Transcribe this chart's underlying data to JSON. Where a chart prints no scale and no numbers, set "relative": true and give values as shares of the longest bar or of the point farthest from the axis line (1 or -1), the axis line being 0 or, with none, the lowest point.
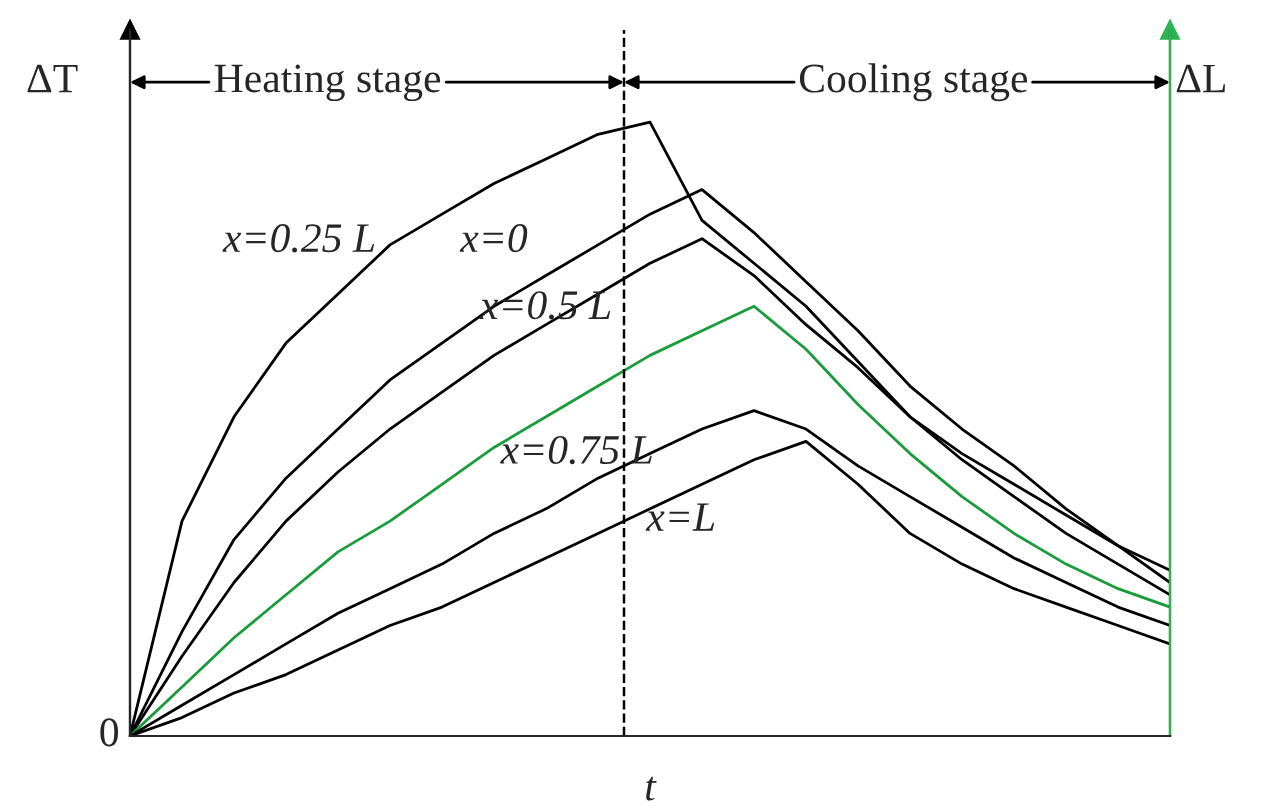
{
  "chart_data": {
    "type": "line",
    "relative": true,
    "xlabel": "t",
    "ylabel": "ΔT",
    "y2label": "ΔL",
    "tick_labels": false,
    "marker": "none",
    "line_style": "solid",
    "categories": [
      null,
      null,
      null,
      null,
      null,
      null,
      null,
      null,
      null,
      null,
      null,
      null,
      null,
      null,
      null,
      null,
      null,
      null,
      null,
      null,
      null
    ],
    "series": [
      {
        "color": "#000000",
        "values": [
          0,
          0.35,
          0.52,
          0.64,
          0.72,
          0.8,
          0.85,
          0.9,
          0.94,
          0.98,
          1,
          0.84,
          0.77,
          0.7,
          0.61,
          0.52,
          0.46,
          0.41,
          0.36,
          0.31,
          0.27
        ]
      },
      {
        "color": "#000000",
        "values": [
          0,
          0.17,
          0.32,
          0.42,
          0.5,
          0.58,
          0.64,
          0.7,
          0.75,
          0.8,
          0.85,
          0.89,
          0.82,
          0.74,
          0.66,
          0.57,
          0.5,
          0.44,
          0.37,
          0.31,
          0.25
        ]
      },
      {
        "color": "#000000",
        "values": [
          0,
          0.13,
          0.25,
          0.35,
          0.43,
          0.5,
          0.56,
          0.62,
          0.67,
          0.72,
          0.77,
          0.81,
          0.75,
          0.67,
          0.6,
          0.52,
          0.45,
          0.39,
          0.33,
          0.28,
          0.23
        ]
      },
      {
        "color": "#1a9b3c",
        "values": [
          0,
          0.08,
          0.16,
          0.23,
          0.3,
          0.35,
          0.41,
          0.47,
          0.52,
          0.57,
          0.62,
          0.66,
          0.7,
          0.63,
          0.54,
          0.46,
          0.39,
          0.33,
          0.28,
          0.24,
          0.21
        ]
      },
      {
        "color": "#000000",
        "values": [
          0,
          0.05,
          0.1,
          0.15,
          0.2,
          0.24,
          0.28,
          0.33,
          0.37,
          0.42,
          0.46,
          0.5,
          0.53,
          0.5,
          0.44,
          0.39,
          0.34,
          0.29,
          0.25,
          0.21,
          0.18
        ]
      },
      {
        "color": "#000000",
        "values": [
          0,
          0.03,
          0.07,
          0.1,
          0.14,
          0.18,
          0.21,
          0.25,
          0.29,
          0.33,
          0.37,
          0.41,
          0.45,
          0.48,
          0.41,
          0.33,
          0.28,
          0.24,
          0.21,
          0.18,
          0.15
        ]
      }
    ],
    "annotations": [
      "x=0.25 L",
      "x=0",
      "x=0.5 L",
      "x=0.75 L",
      "x=L",
      "Heating stage",
      "Cooling stage",
      "0"
    ]
  }
}
